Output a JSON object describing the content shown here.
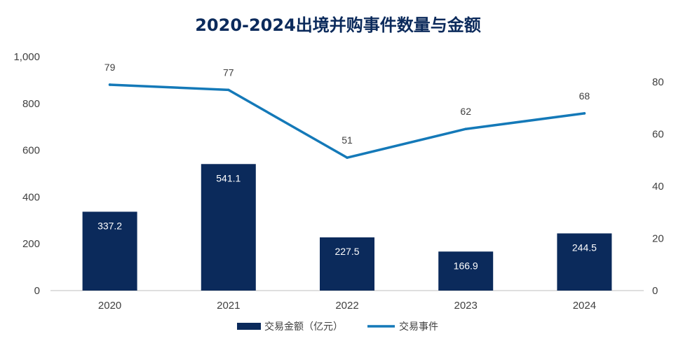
{
  "chart_data": {
    "type": "bar+line",
    "title": "2020-2024出境并购事件数量与金额",
    "categories": [
      "2020",
      "2021",
      "2022",
      "2023",
      "2024"
    ],
    "series": [
      {
        "name": "交易金额（亿元）",
        "type": "bar",
        "axis": "left",
        "values": [
          337.2,
          541.1,
          227.5,
          166.9,
          244.5
        ],
        "labels": [
          "337.2",
          "541.1",
          "227.5",
          "166.9",
          "244.5"
        ],
        "color": "#0b2a5b"
      },
      {
        "name": "交易事件",
        "type": "line",
        "axis": "right",
        "values": [
          79,
          77,
          51,
          62,
          68
        ],
        "labels": [
          "79",
          "77",
          "51",
          "62",
          "68"
        ],
        "color": "#1479b8"
      }
    ],
    "y_left": {
      "min": 0,
      "max": 1000,
      "ticks": [
        0,
        200,
        400,
        600,
        800,
        1000
      ],
      "tick_labels": [
        "0",
        "200",
        "400",
        "600",
        "800",
        "1,000"
      ]
    },
    "y_right": {
      "min": 0,
      "max": 90,
      "ticks": [
        0,
        20,
        40,
        60,
        80
      ],
      "tick_labels": [
        "0",
        "20",
        "40",
        "60",
        "80"
      ]
    },
    "legend_position": "bottom-center",
    "grid": false
  }
}
